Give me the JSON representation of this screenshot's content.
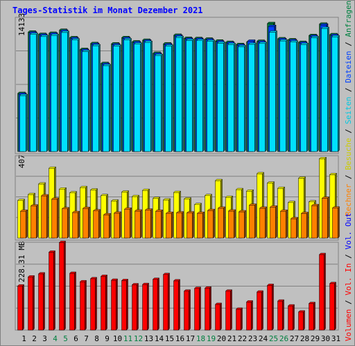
{
  "title": "Tages-Statistik im Monat Dezember 2021",
  "colors": {
    "background": "#c0c0c0",
    "title": "#0000ff",
    "anfragen": "#008040",
    "dateien": "#0040ff",
    "seiten": "#00e0ff",
    "besuche": "#ffff00",
    "rechner": "#ff8000",
    "vol_in": "#ff0000",
    "vol_out": "#0000ff",
    "grid": "#808080"
  },
  "right_labels": {
    "anfragen": "Anfragen",
    "dateien": "Dateien",
    "seiten": "Seiten",
    "besuche": "Besuche",
    "rechner": "Rechner",
    "vol_out": "Vol. Out",
    "vol_in": "Vol. In",
    "volumen": "Volumen",
    "sep": " / "
  },
  "chart_data": [
    {
      "type": "bar",
      "panel": "hits",
      "ytick": "14133",
      "ylim": [
        0,
        15350
      ],
      "categories": [
        "1",
        "2",
        "3",
        "4",
        "5",
        "6",
        "7",
        "8",
        "9",
        "10",
        "11",
        "12",
        "13",
        "14",
        "15",
        "16",
        "17",
        "18",
        "19",
        "20",
        "21",
        "22",
        "23",
        "24",
        "25",
        "26",
        "27",
        "28",
        "29",
        "30",
        "31"
      ],
      "weekend_days": [
        "4",
        "5",
        "11",
        "12",
        "18",
        "19",
        "25",
        "26"
      ],
      "series": [
        {
          "name": "Anfragen",
          "values": [
            6650,
            13660,
            13400,
            13530,
            13870,
            13020,
            11680,
            12350,
            10070,
            12310,
            13030,
            12540,
            12730,
            11240,
            12310,
            13300,
            12950,
            12930,
            12860,
            12640,
            12490,
            12240,
            12520,
            12610,
            14640,
            12900,
            12780,
            12490,
            13270,
            14570,
            13370
          ]
        },
        {
          "name": "Dateien",
          "values": [
            6550,
            13560,
            13300,
            13430,
            13770,
            12920,
            11580,
            12250,
            9970,
            12210,
            12930,
            12440,
            12630,
            11140,
            12210,
            13200,
            12850,
            12830,
            12760,
            12540,
            12390,
            12140,
            12620,
            12510,
            14300,
            12800,
            12680,
            12390,
            13170,
            14470,
            13270
          ]
        },
        {
          "name": "Seiten",
          "values": [
            6400,
            13400,
            13150,
            13280,
            13620,
            12770,
            11430,
            12100,
            9820,
            12060,
            12780,
            12290,
            12480,
            10990,
            12060,
            13050,
            12700,
            12680,
            12610,
            12390,
            12240,
            11990,
            12270,
            12360,
            13650,
            12650,
            12530,
            12240,
            13020,
            14080,
            13120
          ]
        }
      ]
    },
    {
      "type": "bar",
      "panel": "visits",
      "ytick": "407",
      "ylim": [
        0,
        439
      ],
      "categories": [
        "1",
        "2",
        "3",
        "4",
        "5",
        "6",
        "7",
        "8",
        "9",
        "10",
        "11",
        "12",
        "13",
        "14",
        "15",
        "16",
        "17",
        "18",
        "19",
        "20",
        "21",
        "22",
        "23",
        "24",
        "25",
        "26",
        "27",
        "28",
        "29",
        "30",
        "31"
      ],
      "series": [
        {
          "name": "Besuche",
          "values": [
            200,
            232,
            288,
            372,
            261,
            241,
            269,
            256,
            226,
            197,
            245,
            221,
            254,
            211,
            203,
            243,
            208,
            178,
            226,
            306,
            217,
            258,
            250,
            343,
            293,
            265,
            189,
            319,
            193,
            423,
            338
          ]
        },
        {
          "name": "Rechner",
          "values": [
            143,
            171,
            225,
            207,
            156,
            136,
            158,
            145,
            124,
            133,
            154,
            144,
            149,
            143,
            132,
            134,
            134,
            132,
            147,
            159,
            144,
            140,
            175,
            159,
            165,
            143,
            103,
            131,
            173,
            212,
            160
          ]
        }
      ]
    },
    {
      "type": "bar",
      "panel": "volume",
      "ytick": "228.31 MB",
      "ylim": [
        0,
        291
      ],
      "categories": [
        "1",
        "2",
        "3",
        "4",
        "5",
        "6",
        "7",
        "8",
        "9",
        "10",
        "11",
        "12",
        "13",
        "14",
        "15",
        "16",
        "17",
        "18",
        "19",
        "20",
        "21",
        "22",
        "23",
        "24",
        "25",
        "26",
        "27",
        "28",
        "29",
        "30",
        "31"
      ],
      "series": [
        {
          "name": "Vol. In",
          "values": [
            146,
            176,
            186,
            258,
            290,
            188,
            160,
            170,
            178,
            165,
            164,
            150,
            151,
            168,
            184,
            163,
            129,
            138,
            139,
            85,
            129,
            69,
            93,
            126,
            148,
            96,
            80,
            60,
            88,
            250,
            154
          ]
        }
      ]
    }
  ]
}
